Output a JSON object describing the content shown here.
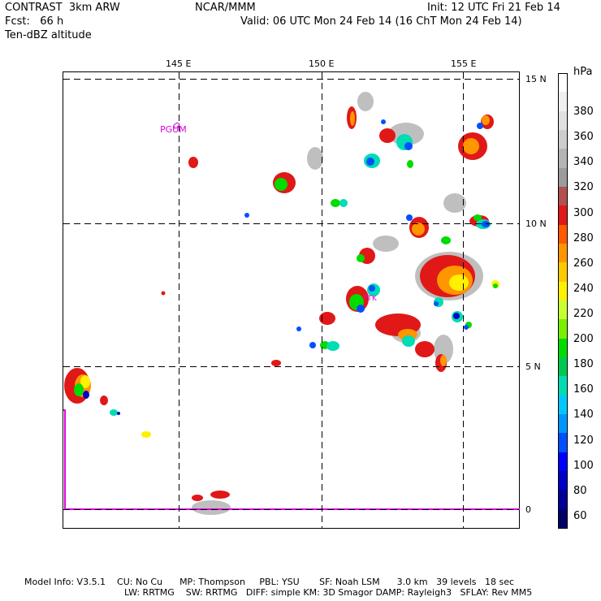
{
  "header": {
    "model": "CONTRAST  3km ARW",
    "forecast": "Fcst:   66 h",
    "field": "Ten-dBZ altitude",
    "center": "NCAR/MMM",
    "init": "Init: 12 UTC Fri 21 Feb 14",
    "valid": "Valid: 06 UTC Mon 24 Feb 14 (16 ChT Mon 24 Feb 14)"
  },
  "map": {
    "lon_labels": [
      "145 E",
      "150 E",
      "155 E"
    ],
    "lat_labels": [
      "15 N",
      "10 N",
      "5 N",
      "0"
    ],
    "station_label": "PGUM",
    "station2_label": "PTK",
    "coast_color": "#e000e0"
  },
  "colorbar": {
    "unit": "hPa",
    "labels": [
      "380",
      "360",
      "340",
      "320",
      "300",
      "280",
      "260",
      "240",
      "220",
      "200",
      "180",
      "160",
      "140",
      "120",
      "100",
      "80",
      "60"
    ],
    "colors": [
      "#ffffff",
      "#f0f0f0",
      "#e0e0e0",
      "#cccccc",
      "#b4b4b4",
      "#9c9c9c",
      "#b45050",
      "#e01818",
      "#ff5a00",
      "#ff9600",
      "#ffc800",
      "#fff000",
      "#c8ff32",
      "#78f000",
      "#00dc00",
      "#00c850",
      "#00dcb4",
      "#00c8ff",
      "#0096ff",
      "#0050ff",
      "#0000ff",
      "#0000c8",
      "#000096",
      "#000064"
    ]
  },
  "footer": {
    "line1": "Model Info: V3.5.1    CU: No Cu      MP: Thompson     PBL: YSU       SF: Noah LSM      3.0 km   39 levels   18 sec",
    "line2": "LW: RRTMG    SW: RRTMG   DIFF: simple KM: 3D Smagor DAMP: Rayleigh3   SFLAY: Rev MM5"
  }
}
